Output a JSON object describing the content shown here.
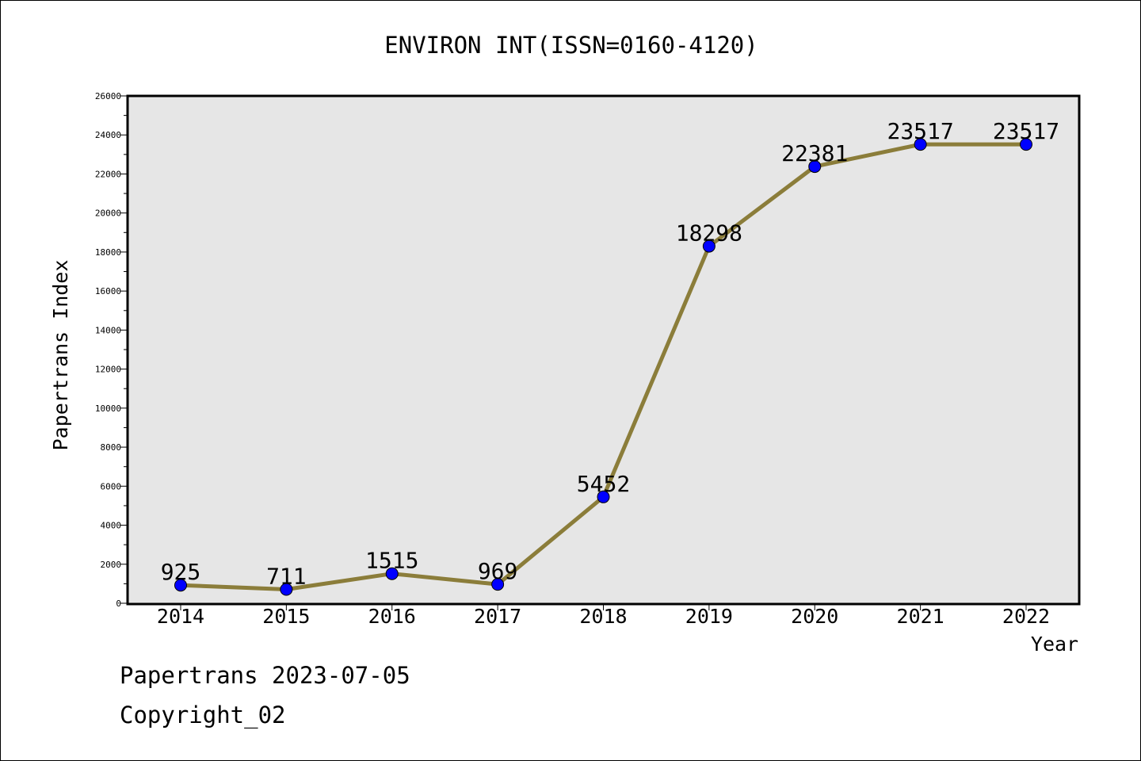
{
  "chart_data": {
    "type": "line",
    "title": "ENVIRON INT(ISSN=0160-4120)",
    "xlabel": "Year",
    "ylabel": "Papertrans Index",
    "x": [
      "2014",
      "2015",
      "2016",
      "2017",
      "2018",
      "2019",
      "2020",
      "2021",
      "2022"
    ],
    "series": [
      {
        "values": [
          925,
          711,
          1515,
          969,
          5452,
          18298,
          22381,
          23517,
          23517
        ]
      }
    ],
    "data_labels": [
      "925",
      "711",
      "1515",
      "969",
      "5452",
      "18298",
      "22381",
      "23517",
      "23517"
    ],
    "ylim": [
      0,
      26000
    ],
    "yticks": [
      "0",
      "2000",
      "4000",
      "6000",
      "8000",
      "10000",
      "12000",
      "14000",
      "16000",
      "18000",
      "20000",
      "22000",
      "24000",
      "26000"
    ],
    "grid": false,
    "colors": {
      "line": "#8B7D3A",
      "marker": "#0000FF",
      "plot_background": "#E6E6E6"
    }
  },
  "footer": {
    "line1": "Papertrans 2023-07-05",
    "line2": "Copyright_02"
  }
}
